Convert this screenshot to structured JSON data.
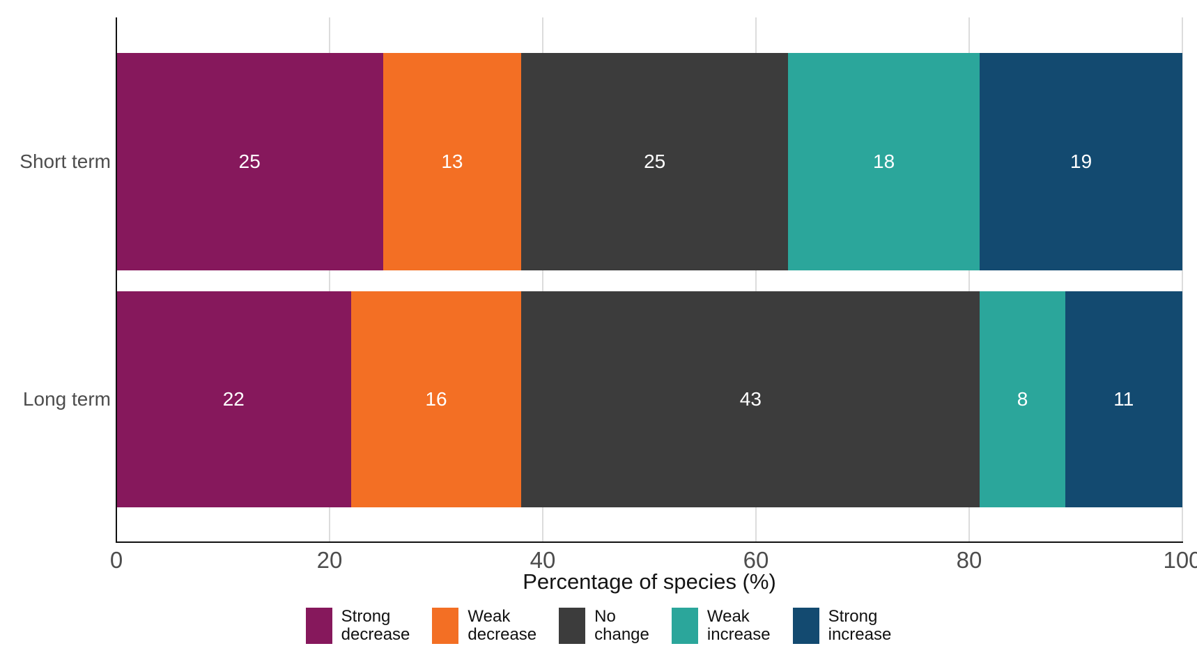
{
  "chart_data": {
    "type": "bar",
    "orientation": "horizontal",
    "stacked": true,
    "title": "",
    "xlabel": "Percentage of species (%)",
    "ylabel": "",
    "categories": [
      "Short term",
      "Long term"
    ],
    "series": [
      {
        "name": "Strong decrease",
        "color": "#86185C",
        "values": [
          25,
          22
        ]
      },
      {
        "name": "Weak decrease",
        "color": "#F36F24",
        "values": [
          13,
          16
        ]
      },
      {
        "name": "No change",
        "color": "#3C3C3C",
        "values": [
          25,
          43
        ]
      },
      {
        "name": "Weak increase",
        "color": "#2BA69B",
        "values": [
          18,
          8
        ]
      },
      {
        "name": "Strong increase",
        "color": "#134A70",
        "values": [
          19,
          11
        ]
      }
    ],
    "bar_value_labels": [
      [
        25,
        13,
        25,
        18,
        19
      ],
      [
        22,
        16,
        43,
        8,
        11
      ]
    ],
    "x_ticks": [
      0,
      20,
      40,
      60,
      80,
      100
    ],
    "xlim": [
      0,
      100
    ],
    "grid": "vertical-light-gray",
    "legend_position": "bottom"
  },
  "colors": {
    "grid": "#DCDCDC",
    "axis_line": "#111111",
    "axis_text": "#4D4D4D",
    "axis_title": "#141414",
    "bar_label_text": "#FFFFFF",
    "background": "#FFFFFF"
  }
}
